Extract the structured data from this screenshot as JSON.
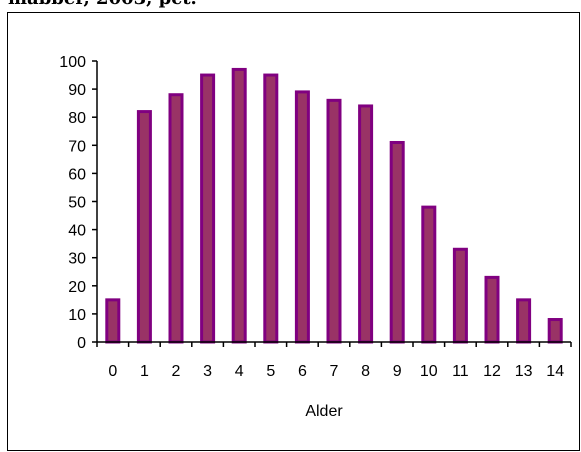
{
  "page": {
    "title_fragment": "mabber, 2003, pct."
  },
  "chart_data": {
    "type": "bar",
    "categories": [
      "0",
      "1",
      "2",
      "3",
      "4",
      "5",
      "6",
      "7",
      "8",
      "9",
      "10",
      "11",
      "12",
      "13",
      "14"
    ],
    "values": [
      15,
      82,
      88,
      95,
      97,
      95,
      89,
      86,
      84,
      71,
      48,
      33,
      23,
      15,
      8
    ],
    "xlabel": "Alder",
    "ylabel": "",
    "ylim": [
      0,
      100
    ],
    "yticks": [
      "0",
      "10",
      "20",
      "30",
      "40",
      "50",
      "60",
      "70",
      "80",
      "90",
      "100"
    ],
    "grid": false,
    "legend": "none",
    "colors": {
      "bar_fill": "#993366",
      "bar_border": "#800080"
    }
  }
}
